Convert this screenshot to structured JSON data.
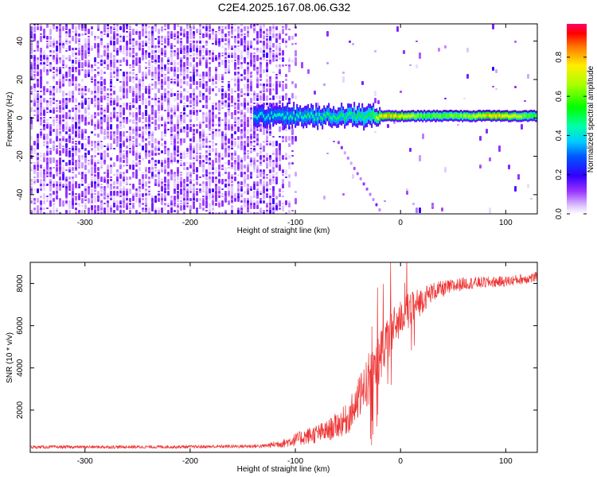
{
  "title": "C2E4.2025.167.08.06.G32",
  "chart_data": [
    {
      "type": "heatmap",
      "name": "spectrogram",
      "xlabel": "Height of straight line (km)",
      "ylabel": "Frequency (Hz)",
      "xlim": [
        -352,
        130
      ],
      "ylim": [
        -50,
        49
      ],
      "xticks": [
        -300,
        -200,
        -100,
        0,
        100
      ],
      "xtick_labels": [
        "-300",
        "-200",
        "-100",
        "0",
        "100"
      ],
      "yticks": [
        -40,
        -20,
        0,
        20,
        40
      ],
      "ytick_labels": [
        "-40",
        "-20",
        "0",
        "20",
        "40"
      ],
      "colorbar": {
        "label": "Normalized spectral amplitude",
        "range": [
          0,
          0.97
        ],
        "ticks": [
          0,
          0.2,
          0.4,
          0.6,
          0.8
        ],
        "tick_labels": [
          "0.0",
          "0.2",
          "0.4",
          "0.6",
          "0.8"
        ]
      },
      "features": {
        "noise_region_x": [
          -352,
          -130
        ],
        "noise_amplitude": [
          0.02,
          0.15
        ],
        "signal_line_freq_hz": 1,
        "signal_start_x": -140,
        "signal_trace": [
          {
            "x": -140,
            "amp": 0.45
          },
          {
            "x": -100,
            "amp": 0.5
          },
          {
            "x": -60,
            "amp": 0.55
          },
          {
            "x": -30,
            "amp": 0.6
          },
          {
            "x": -15,
            "amp": 0.9
          },
          {
            "x": 0,
            "amp": 0.85
          },
          {
            "x": 20,
            "amp": 0.65
          },
          {
            "x": 60,
            "amp": 0.7
          },
          {
            "x": 90,
            "amp": 0.9
          },
          {
            "x": 130,
            "amp": 0.6
          }
        ]
      }
    },
    {
      "type": "line",
      "name": "snr",
      "xlabel": "Height of straight line (km)",
      "ylabel": "SNR (10 * v/v)",
      "xlim": [
        -352,
        130
      ],
      "ylim": [
        0,
        9000
      ],
      "xticks": [
        -300,
        -200,
        -100,
        0,
        100
      ],
      "xtick_labels": [
        "-300",
        "-200",
        "-100",
        "0",
        "100"
      ],
      "yticks": [
        2000,
        4000,
        6000,
        8000
      ],
      "ytick_labels": [
        "2000",
        "4000",
        "6000",
        "8000"
      ],
      "color": "#ee3333",
      "series": [
        {
          "name": "SNR",
          "envelope": [
            {
              "x": -352,
              "mean": 250,
              "spread": 150
            },
            {
              "x": -200,
              "mean": 260,
              "spread": 150
            },
            {
              "x": -130,
              "mean": 300,
              "spread": 180
            },
            {
              "x": -110,
              "mean": 450,
              "spread": 450
            },
            {
              "x": -90,
              "mean": 750,
              "spread": 800
            },
            {
              "x": -70,
              "mean": 1000,
              "spread": 1000
            },
            {
              "x": -50,
              "mean": 1600,
              "spread": 1500
            },
            {
              "x": -40,
              "mean": 2500,
              "spread": 2000
            },
            {
              "x": -30,
              "mean": 3500,
              "spread": 2500
            },
            {
              "x": -20,
              "mean": 4500,
              "spread": 2500
            },
            {
              "x": -10,
              "mean": 5600,
              "spread": 2200
            },
            {
              "x": 0,
              "mean": 6400,
              "spread": 1800
            },
            {
              "x": 15,
              "mean": 7000,
              "spread": 1500
            },
            {
              "x": 30,
              "mean": 7600,
              "spread": 900
            },
            {
              "x": 60,
              "mean": 8000,
              "spread": 600
            },
            {
              "x": 100,
              "mean": 8100,
              "spread": 500
            },
            {
              "x": 130,
              "mean": 8300,
              "spread": 500
            }
          ]
        }
      ]
    }
  ]
}
